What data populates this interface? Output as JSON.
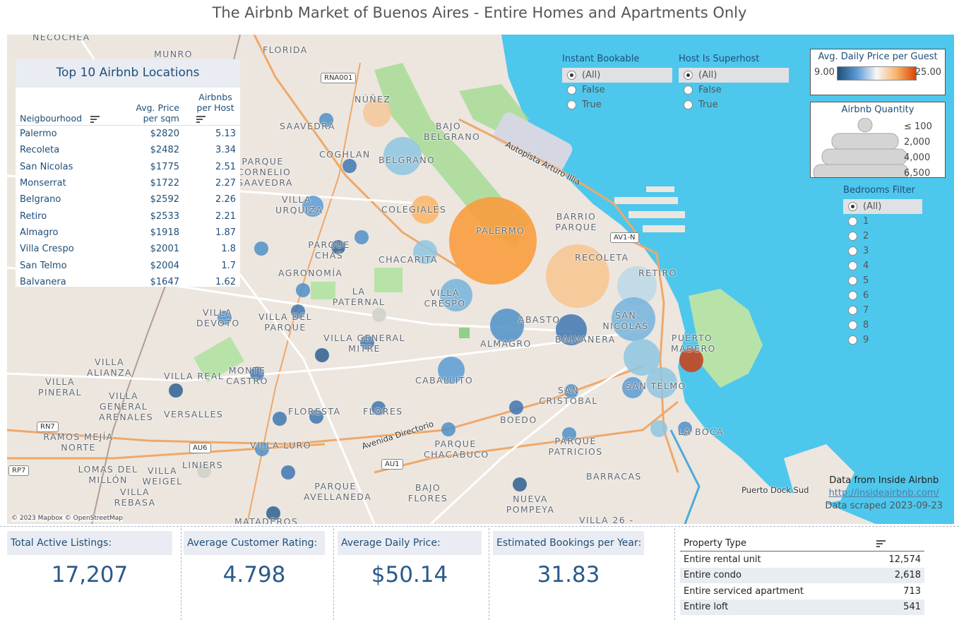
{
  "title": "The Airbnb Market of Buenos Aires - Entire Homes and Apartments Only",
  "map": {
    "copyright": "© 2023 Mapbox © OpenStreetMap",
    "source_line": "Data from Inside Airbnb",
    "source_link": "http://insideairbnb.com/",
    "scraped": "Data scraped 2023-09-23",
    "place_labels": [
      "NECOCHEA",
      "MUNRO",
      "FLORIDA",
      "NÚÑEZ",
      "SAAVEDRA",
      "BAJO BELGRANO",
      "COGHLAN",
      "BELGRANO",
      "PARQUE CORNELIO SAAVEDRA",
      "VILLA URQUIZA",
      "COLEGIALES",
      "BARRIO PARQUE",
      "PALERMO",
      "PARQUE CHAS",
      "CHACARITA",
      "RECOLETA",
      "AGRONOMÍA",
      "RETIRO",
      "LA PATERNAL",
      "VILLA CRESPO",
      "VILLA DEVOTO",
      "VILLA DEL PARQUE",
      "ABASTO",
      "SAN NICOLÁS",
      "VILLA GENERAL MITRE",
      "ALMAGRO",
      "BALVANERA",
      "PUERTO MADERO",
      "VILLA ALIANZA",
      "VILLA REAL",
      "MONTE CASTRO",
      "CABALLITO",
      "SAN TELMO",
      "VILLA PINERAL",
      "SAN CRISTOBAL",
      "VILLA GENERAL ARENALES",
      "VERSALLES",
      "FLORESTA",
      "FLORES",
      "BOEDO",
      "LA BOCA",
      "RAMOS MEJÍA NORTE",
      "VILLA LURO",
      "PARQUE CHACABUCO",
      "PARQUE PATRICIOS",
      "LOMAS DEL MILLÓN",
      "LINIERS",
      "VILLA WEIGEL",
      "BARRACAS",
      "PARQUE AVELLANEDA",
      "BAJO FLORES",
      "NUEVA POMPEYA",
      "VILLA REBASA",
      "MATADEROS",
      "VILLA 26 -"
    ],
    "road_labels": [
      "Autopista Arturo Illia",
      "Avenida Directorio",
      "Puerto Dock Sud"
    ],
    "shields": [
      "RNA001",
      "AV1-N",
      "RN7",
      "AU6",
      "AU1",
      "RP7"
    ]
  },
  "top10": {
    "title": "Top 10 Airbnb Locations",
    "col_neigh": "Neigbourhood",
    "col_price": "Avg. Price per sqm",
    "col_host": "Airbnbs per Host",
    "rows": [
      {
        "name": "Palermo",
        "price": "$2820",
        "host": "5.13"
      },
      {
        "name": "Recoleta",
        "price": "$2482",
        "host": "3.34"
      },
      {
        "name": "San Nicolas",
        "price": "$1775",
        "host": "2.51"
      },
      {
        "name": "Monserrat",
        "price": "$1722",
        "host": "2.27"
      },
      {
        "name": "Belgrano",
        "price": "$2592",
        "host": "2.26"
      },
      {
        "name": "Retiro",
        "price": "$2533",
        "host": "2.21"
      },
      {
        "name": "Almagro",
        "price": "$1918",
        "host": "1.87"
      },
      {
        "name": "Villa Crespo",
        "price": "$2001",
        "host": "1.8"
      },
      {
        "name": "San Telmo",
        "price": "$2004",
        "host": "1.7"
      },
      {
        "name": "Balvanera",
        "price": "$1647",
        "host": "1.62"
      }
    ]
  },
  "filters": {
    "instant": {
      "title": "Instant Bookable",
      "options": [
        "(All)",
        "False",
        "True"
      ],
      "selected": 0
    },
    "superhost": {
      "title": "Host Is Superhost",
      "options": [
        "(All)",
        "False",
        "True"
      ],
      "selected": 0
    },
    "bedrooms": {
      "title": "Bedrooms Filter",
      "options": [
        "(All)",
        "1",
        "2",
        "3",
        "4",
        "5",
        "6",
        "7",
        "8",
        "9"
      ],
      "selected": 0
    }
  },
  "price_legend": {
    "title": "Avg. Daily Price per Guest",
    "min": "9.00",
    "max": "25.00",
    "colors": [
      "#1f4e79",
      "#5b9bd5",
      "#f7f7f7",
      "#f7b36b",
      "#d94701"
    ]
  },
  "qty_legend": {
    "title": "Airbnb Quantity",
    "levels": [
      "≤ 100",
      "2,000",
      "4,000",
      "6,500"
    ]
  },
  "kpis": [
    {
      "label": "Total Active Listings:",
      "value": "17,207"
    },
    {
      "label": "Average Customer Rating:",
      "value": "4.798"
    },
    {
      "label": "Average Daily Price:",
      "value": "$50.14"
    },
    {
      "label": "Estimated Bookings per Year:",
      "value": "31.83"
    }
  ],
  "property_type": {
    "header": "Property Type",
    "rows": [
      {
        "name": "Entire rental unit",
        "count": "12,574"
      },
      {
        "name": "Entire condo",
        "count": "2,618"
      },
      {
        "name": "Entire serviced apartment",
        "count": "713"
      },
      {
        "name": "Entire loft",
        "count": "541"
      }
    ]
  }
}
